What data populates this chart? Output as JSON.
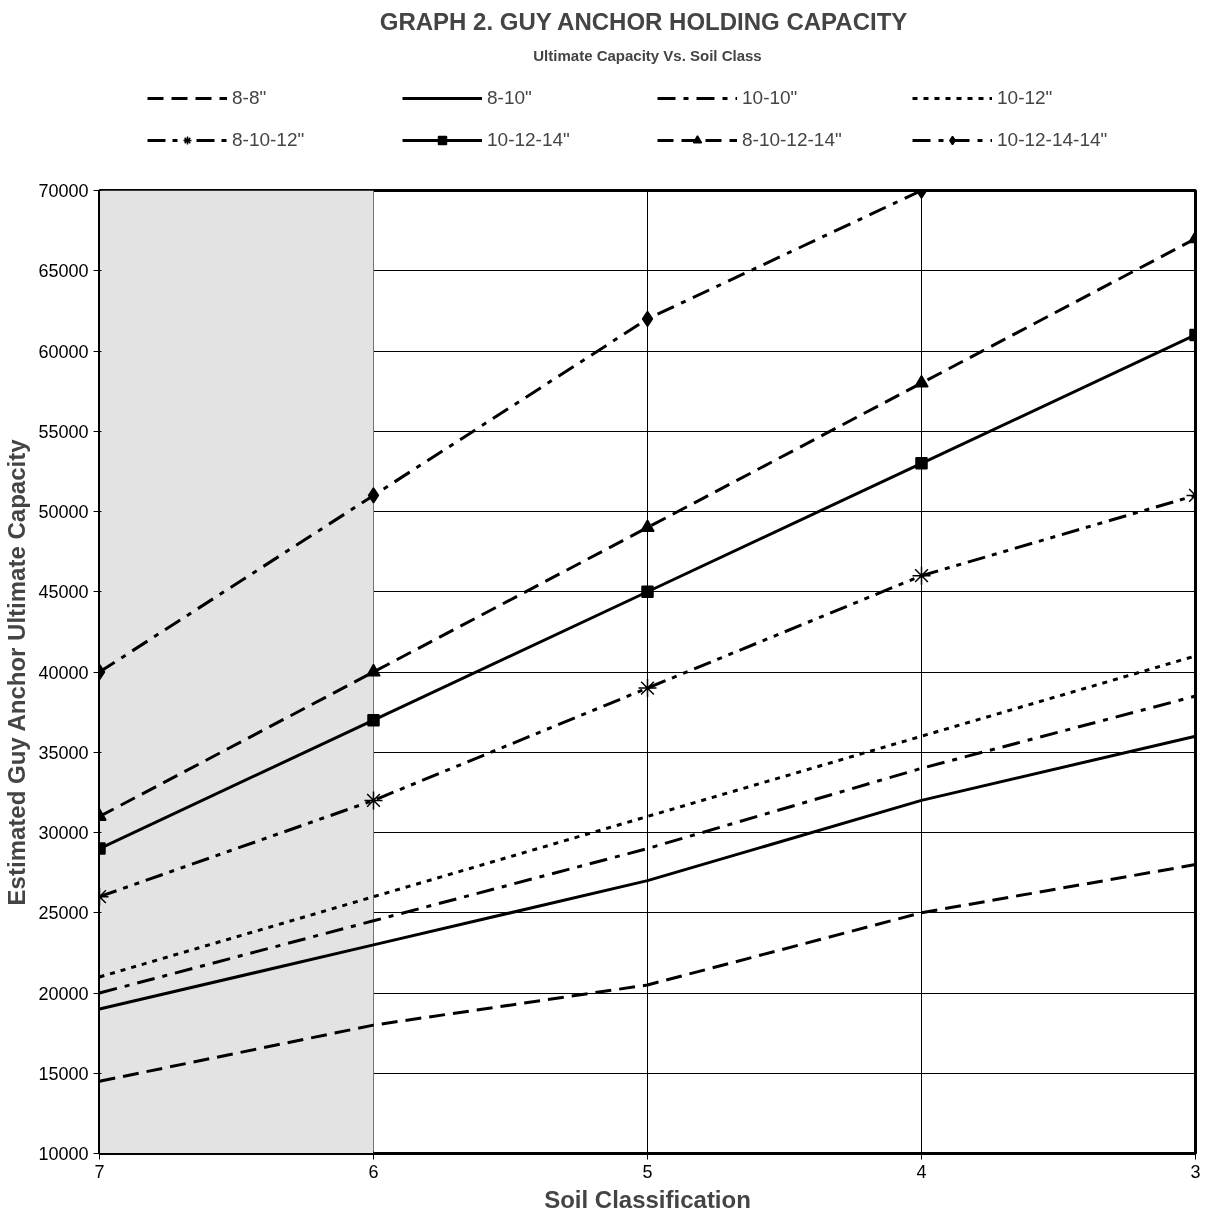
{
  "chart_data": {
    "type": "line",
    "title": "GRAPH 2.  GUY ANCHOR HOLDING CAPACITY",
    "subtitle": "Ultimate Capacity Vs. Soil Class",
    "xlabel": "Soil Classification",
    "ylabel": "Estimated Guy Anchor Ultimate Capacity",
    "x": [
      7,
      6,
      5,
      4,
      3
    ],
    "xlim": [
      7,
      3
    ],
    "xticks": [
      7,
      6,
      5,
      4,
      3
    ],
    "ylim": [
      10000,
      70000
    ],
    "yticks": [
      10000,
      15000,
      20000,
      25000,
      30000,
      35000,
      40000,
      45000,
      50000,
      55000,
      60000,
      65000,
      70000
    ],
    "grid": true,
    "legend": "top",
    "bands": [
      {
        "axis": "x",
        "from": 7,
        "to": 6,
        "color": "#e3e3e3"
      }
    ],
    "series": [
      {
        "name": "8-8\"",
        "color": "#000000",
        "line_style": "dashed",
        "marker": "none",
        "values": [
          14500,
          18000,
          20500,
          25000,
          28000
        ]
      },
      {
        "name": "8-10\"",
        "color": "#000000",
        "line_style": "solid",
        "marker": "none",
        "values": [
          19000,
          23000,
          27000,
          32000,
          36000
        ]
      },
      {
        "name": "10-10\"",
        "color": "#000000",
        "line_style": "dashdot",
        "marker": "none",
        "values": [
          20000,
          24500,
          29000,
          34000,
          38500
        ]
      },
      {
        "name": "10-12\"",
        "color": "#000000",
        "line_style": "dotted",
        "marker": "none",
        "values": [
          21000,
          26000,
          31000,
          36000,
          41000
        ]
      },
      {
        "name": "8-10-12\"",
        "color": "#000000",
        "line_style": "dashdotdot",
        "marker": "cross",
        "values": [
          26000,
          32000,
          39000,
          46000,
          51000
        ]
      },
      {
        "name": "10-12-14\"",
        "color": "#000000",
        "line_style": "solid",
        "marker": "square",
        "values": [
          29000,
          37000,
          45000,
          53000,
          61000
        ]
      },
      {
        "name": "8-10-12-14\"",
        "color": "#000000",
        "line_style": "dashed",
        "marker": "triangle",
        "values": [
          31000,
          40000,
          49000,
          58000,
          67000
        ]
      },
      {
        "name": "10-12-14-14\"",
        "color": "#000000",
        "line_style": "dashdot",
        "marker": "diamond",
        "values": [
          40000,
          51000,
          62000,
          70000,
          null
        ]
      }
    ]
  }
}
